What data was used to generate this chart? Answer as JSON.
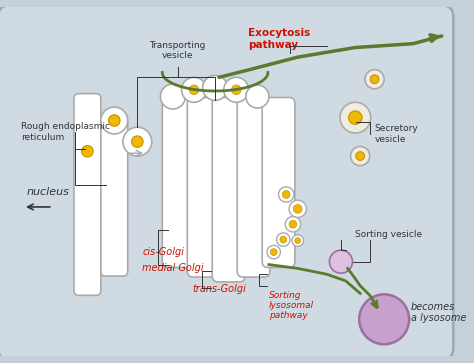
{
  "bg_color": "#c5d0db",
  "cell_bg": "#d0dae3",
  "gold_color": "#f0b800",
  "gold_border": "#c89000",
  "purple_color": "#c8a0cc",
  "purple_border": "#9a70a0",
  "green_path": "#5a7a2e",
  "gray_border": "#aaaaaa",
  "white": "#ffffff",
  "red_color": "#cc1100",
  "dark": "#333333",
  "labels": {
    "transporting_vesicle": "Transporting\nvesicle",
    "rough_er": "Rough endoplasmic\nreticulum",
    "exocytosis": "Exocytosis\npathway",
    "secretory": "Secretory\nvesicle",
    "sorting_vesicle": "Sorting vesicle",
    "nucleus": "nucleus",
    "cis_golgi": "cis-Golgi",
    "medial_golgi": "medial Golgi",
    "trans_golgi": "trans-Golgi",
    "sorting_lysosomal": "Sorting\nlysosomal\npathway",
    "becomes_lysosome": "becomes\na lysosome"
  }
}
